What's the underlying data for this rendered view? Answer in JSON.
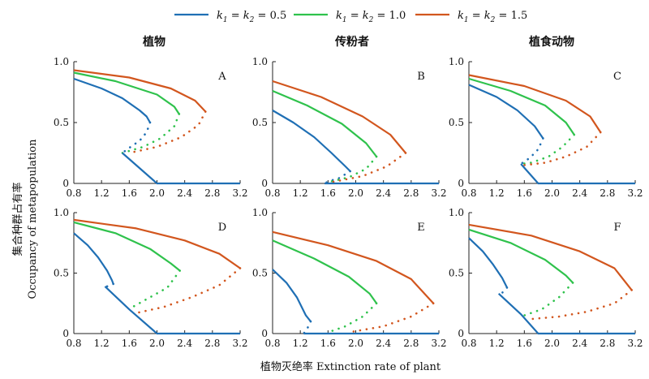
{
  "chart_data": {
    "type": "line",
    "legend": {
      "placement": "top",
      "entries": [
        {
          "key": "s05",
          "k_label": "k",
          "sub1": "1",
          "sub2": "2",
          "value": "= 0.5",
          "color": "#1f6fb4"
        },
        {
          "key": "s10",
          "k_label": "k",
          "sub1": "1",
          "sub2": "2",
          "value": "= 1.0",
          "color": "#2fc24c"
        },
        {
          "key": "s15",
          "k_label": "k",
          "sub1": "1",
          "sub2": "2",
          "value": "= 1.5",
          "color": "#d2561e"
        }
      ]
    },
    "column_titles": [
      "植物",
      "传粉者",
      "植食动物"
    ],
    "xlabel": "植物灭绝率 Extinction rate of plant",
    "ylabel_cn": "集合种群占有率",
    "ylabel_en": "Occupancy of metapopulation",
    "xlim": [
      0.8,
      3.2
    ],
    "ylim": [
      0,
      1
    ],
    "xticks": [
      "0.8",
      "1.2",
      "1.6",
      "2.0",
      "2.4",
      "2.8",
      "3.2"
    ],
    "yticks": [
      "0",
      "0.5",
      "1.0"
    ],
    "grid": false,
    "panels": [
      {
        "id": "A",
        "label": "A",
        "series": [
          {
            "color_key": "s05",
            "stable": [
              [
                0.8,
                0.86
              ],
              [
                1.2,
                0.78
              ],
              [
                1.5,
                0.7
              ],
              [
                1.75,
                0.6
              ],
              [
                1.85,
                0.55
              ],
              [
                1.9,
                0.5
              ]
            ],
            "unstable": [
              [
                1.9,
                0.5
              ],
              [
                1.85,
                0.42
              ],
              [
                1.75,
                0.35
              ],
              [
                1.62,
                0.3
              ],
              [
                1.5,
                0.25
              ]
            ],
            "extinct": [
              [
                1.5,
                0.25
              ],
              [
                2.0,
                0
              ],
              [
                3.2,
                0
              ]
            ]
          },
          {
            "color_key": "s10",
            "stable": [
              [
                0.8,
                0.91
              ],
              [
                1.4,
                0.84
              ],
              [
                2.0,
                0.73
              ],
              [
                2.25,
                0.63
              ],
              [
                2.32,
                0.57
              ]
            ],
            "unstable": [
              [
                2.32,
                0.57
              ],
              [
                2.25,
                0.47
              ],
              [
                2.05,
                0.37
              ],
              [
                1.8,
                0.3
              ],
              [
                1.5,
                0.25
              ]
            ],
            "extinct": []
          },
          {
            "color_key": "s15",
            "stable": [
              [
                0.8,
                0.93
              ],
              [
                1.6,
                0.87
              ],
              [
                2.2,
                0.78
              ],
              [
                2.55,
                0.68
              ],
              [
                2.7,
                0.59
              ]
            ],
            "unstable": [
              [
                2.7,
                0.59
              ],
              [
                2.6,
                0.48
              ],
              [
                2.35,
                0.38
              ],
              [
                2.0,
                0.3
              ],
              [
                1.6,
                0.25
              ]
            ],
            "extinct": []
          }
        ]
      },
      {
        "id": "B",
        "label": "B",
        "series": [
          {
            "color_key": "s05",
            "stable": [
              [
                0.8,
                0.6
              ],
              [
                1.1,
                0.5
              ],
              [
                1.4,
                0.38
              ],
              [
                1.65,
                0.25
              ],
              [
                1.85,
                0.14
              ],
              [
                1.92,
                0.1
              ]
            ],
            "unstable": [
              [
                1.92,
                0.1
              ],
              [
                1.75,
                0.04
              ],
              [
                1.62,
                0.02
              ],
              [
                1.55,
                0
              ]
            ],
            "extinct": [
              [
                1.55,
                0
              ],
              [
                3.2,
                0
              ]
            ]
          },
          {
            "color_key": "s10",
            "stable": [
              [
                0.8,
                0.76
              ],
              [
                1.3,
                0.64
              ],
              [
                1.8,
                0.49
              ],
              [
                2.15,
                0.33
              ],
              [
                2.3,
                0.22
              ]
            ],
            "unstable": [
              [
                2.3,
                0.22
              ],
              [
                2.15,
                0.12
              ],
              [
                1.9,
                0.05
              ],
              [
                1.6,
                0.01
              ]
            ],
            "extinct": []
          },
          {
            "color_key": "s15",
            "stable": [
              [
                0.8,
                0.84
              ],
              [
                1.5,
                0.71
              ],
              [
                2.1,
                0.55
              ],
              [
                2.5,
                0.4
              ],
              [
                2.72,
                0.25
              ]
            ],
            "unstable": [
              [
                2.72,
                0.25
              ],
              [
                2.45,
                0.14
              ],
              [
                2.1,
                0.06
              ],
              [
                1.65,
                0.01
              ]
            ],
            "extinct": []
          }
        ]
      },
      {
        "id": "C",
        "label": "C",
        "series": [
          {
            "color_key": "s05",
            "stable": [
              [
                0.8,
                0.81
              ],
              [
                1.2,
                0.71
              ],
              [
                1.5,
                0.6
              ],
              [
                1.75,
                0.47
              ],
              [
                1.87,
                0.37
              ]
            ],
            "unstable": [
              [
                1.87,
                0.37
              ],
              [
                1.8,
                0.28
              ],
              [
                1.68,
                0.21
              ],
              [
                1.55,
                0.16
              ]
            ],
            "extinct": [
              [
                1.55,
                0.16
              ],
              [
                1.8,
                0
              ],
              [
                3.2,
                0
              ]
            ]
          },
          {
            "color_key": "s10",
            "stable": [
              [
                0.8,
                0.86
              ],
              [
                1.4,
                0.76
              ],
              [
                1.9,
                0.64
              ],
              [
                2.2,
                0.5
              ],
              [
                2.32,
                0.4
              ]
            ],
            "unstable": [
              [
                2.32,
                0.4
              ],
              [
                2.15,
                0.3
              ],
              [
                1.95,
                0.22
              ],
              [
                1.7,
                0.17
              ],
              [
                1.55,
                0.16
              ]
            ],
            "extinct": []
          },
          {
            "color_key": "s15",
            "stable": [
              [
                0.8,
                0.89
              ],
              [
                1.6,
                0.8
              ],
              [
                2.2,
                0.68
              ],
              [
                2.55,
                0.55
              ],
              [
                2.7,
                0.42
              ]
            ],
            "unstable": [
              [
                2.7,
                0.42
              ],
              [
                2.5,
                0.3
              ],
              [
                2.2,
                0.22
              ],
              [
                1.9,
                0.17
              ],
              [
                1.6,
                0.15
              ]
            ],
            "extinct": []
          }
        ]
      },
      {
        "id": "D",
        "label": "D",
        "series": [
          {
            "color_key": "s05",
            "stable": [
              [
                0.8,
                0.83
              ],
              [
                1.0,
                0.73
              ],
              [
                1.15,
                0.63
              ],
              [
                1.28,
                0.52
              ],
              [
                1.35,
                0.44
              ],
              [
                1.37,
                0.41
              ]
            ],
            "unstable": [
              [
                1.37,
                0.41
              ],
              [
                1.28,
                0.39
              ]
            ],
            "extinct": [
              [
                1.25,
                0.39
              ],
              [
                1.6,
                0.2
              ],
              [
                2.0,
                0
              ],
              [
                3.2,
                0
              ]
            ]
          },
          {
            "color_key": "s10",
            "stable": [
              [
                0.8,
                0.92
              ],
              [
                1.4,
                0.83
              ],
              [
                1.9,
                0.7
              ],
              [
                2.2,
                0.58
              ],
              [
                2.33,
                0.52
              ]
            ],
            "unstable": [
              [
                2.33,
                0.52
              ],
              [
                2.15,
                0.38
              ],
              [
                1.9,
                0.3
              ],
              [
                1.65,
                0.22
              ]
            ],
            "extinct": []
          },
          {
            "color_key": "s15",
            "stable": [
              [
                0.8,
                0.94
              ],
              [
                1.7,
                0.87
              ],
              [
                2.4,
                0.77
              ],
              [
                2.9,
                0.66
              ],
              [
                3.2,
                0.54
              ]
            ],
            "unstable": [
              [
                3.2,
                0.54
              ],
              [
                2.9,
                0.4
              ],
              [
                2.5,
                0.3
              ],
              [
                2.1,
                0.22
              ],
              [
                1.7,
                0.17
              ]
            ],
            "extinct": []
          }
        ]
      },
      {
        "id": "E",
        "label": "E",
        "series": [
          {
            "color_key": "s05",
            "stable": [
              [
                0.8,
                0.53
              ],
              [
                1.0,
                0.42
              ],
              [
                1.15,
                0.3
              ],
              [
                1.28,
                0.15
              ],
              [
                1.35,
                0.1
              ]
            ],
            "unstable": [
              [
                1.35,
                0.1
              ],
              [
                1.3,
                0.04
              ],
              [
                1.25,
                0
              ]
            ],
            "extinct": [
              [
                1.25,
                0
              ],
              [
                3.2,
                0
              ]
            ]
          },
          {
            "color_key": "s10",
            "stable": [
              [
                0.8,
                0.77
              ],
              [
                1.4,
                0.62
              ],
              [
                1.9,
                0.47
              ],
              [
                2.2,
                0.33
              ],
              [
                2.3,
                0.25
              ]
            ],
            "unstable": [
              [
                2.3,
                0.25
              ],
              [
                2.1,
                0.14
              ],
              [
                1.85,
                0.06
              ],
              [
                1.6,
                0.01
              ]
            ],
            "extinct": []
          },
          {
            "color_key": "s15",
            "stable": [
              [
                0.8,
                0.84
              ],
              [
                1.6,
                0.73
              ],
              [
                2.3,
                0.6
              ],
              [
                2.8,
                0.45
              ],
              [
                3.12,
                0.25
              ]
            ],
            "unstable": [
              [
                3.12,
                0.25
              ],
              [
                2.8,
                0.14
              ],
              [
                2.4,
                0.06
              ],
              [
                1.9,
                0.01
              ]
            ],
            "extinct": []
          }
        ]
      },
      {
        "id": "F",
        "label": "F",
        "series": [
          {
            "color_key": "s05",
            "stable": [
              [
                0.8,
                0.79
              ],
              [
                1.0,
                0.68
              ],
              [
                1.15,
                0.57
              ],
              [
                1.28,
                0.46
              ],
              [
                1.35,
                0.38
              ]
            ],
            "unstable": [
              [
                1.35,
                0.38
              ],
              [
                1.27,
                0.33
              ]
            ],
            "extinct": [
              [
                1.23,
                0.33
              ],
              [
                1.55,
                0.16
              ],
              [
                1.8,
                0
              ],
              [
                3.2,
                0
              ]
            ]
          },
          {
            "color_key": "s10",
            "stable": [
              [
                0.8,
                0.86
              ],
              [
                1.4,
                0.75
              ],
              [
                1.9,
                0.61
              ],
              [
                2.2,
                0.48
              ],
              [
                2.3,
                0.42
              ]
            ],
            "unstable": [
              [
                2.3,
                0.42
              ],
              [
                2.1,
                0.3
              ],
              [
                1.85,
                0.2
              ],
              [
                1.6,
                0.15
              ]
            ],
            "extinct": []
          },
          {
            "color_key": "s15",
            "stable": [
              [
                0.8,
                0.9
              ],
              [
                1.7,
                0.81
              ],
              [
                2.4,
                0.68
              ],
              [
                2.9,
                0.54
              ],
              [
                3.15,
                0.36
              ]
            ],
            "unstable": [
              [
                3.15,
                0.36
              ],
              [
                2.9,
                0.25
              ],
              [
                2.5,
                0.18
              ],
              [
                2.1,
                0.14
              ],
              [
                1.7,
                0.12
              ]
            ],
            "extinct": []
          }
        ]
      }
    ]
  }
}
